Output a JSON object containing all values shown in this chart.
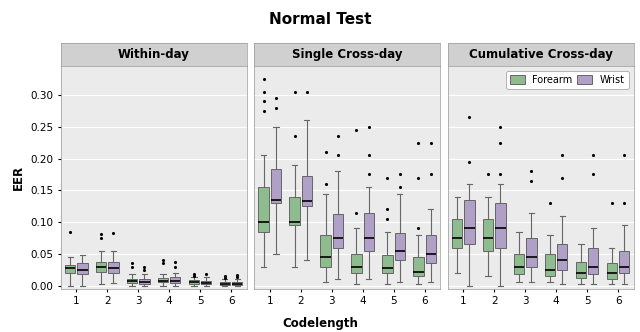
{
  "title": "Normal Test",
  "panels": [
    "Within-day",
    "Single Cross-day",
    "Cumulative Cross-day"
  ],
  "xlabel": "Codelength",
  "ylabel": "EER",
  "codelengths": [
    1,
    2,
    3,
    4,
    5,
    6
  ],
  "forearm_color": "#8fbc8f",
  "wrist_color": "#b0a0c8",
  "ylim": [
    -0.005,
    0.345
  ],
  "yticks": [
    0.0,
    0.05,
    0.1,
    0.15,
    0.2,
    0.25,
    0.3
  ],
  "within_forearm": [
    {
      "q1": 0.02,
      "median": 0.028,
      "q3": 0.033,
      "whislo": 0.0,
      "whishi": 0.045,
      "fliers": [
        0.085
      ]
    },
    {
      "q1": 0.022,
      "median": 0.029,
      "q3": 0.037,
      "whislo": 0.003,
      "whishi": 0.055,
      "fliers": [
        0.075,
        0.082
      ]
    },
    {
      "q1": 0.004,
      "median": 0.007,
      "q3": 0.01,
      "whislo": 0.0,
      "whishi": 0.018,
      "fliers": [
        0.03,
        0.035
      ]
    },
    {
      "q1": 0.005,
      "median": 0.008,
      "q3": 0.012,
      "whislo": 0.0,
      "whishi": 0.018,
      "fliers": [
        0.035,
        0.04
      ]
    },
    {
      "q1": 0.002,
      "median": 0.005,
      "q3": 0.009,
      "whislo": 0.0,
      "whishi": 0.013,
      "fliers": [
        0.015,
        0.018
      ]
    },
    {
      "q1": 0.001,
      "median": 0.003,
      "q3": 0.006,
      "whislo": 0.0,
      "whishi": 0.01,
      "fliers": [
        0.012,
        0.015
      ]
    }
  ],
  "within_wrist": [
    {
      "q1": 0.018,
      "median": 0.025,
      "q3": 0.035,
      "whislo": 0.0,
      "whishi": 0.048,
      "fliers": []
    },
    {
      "q1": 0.02,
      "median": 0.028,
      "q3": 0.038,
      "whislo": 0.004,
      "whishi": 0.055,
      "fliers": [
        0.083
      ]
    },
    {
      "q1": 0.003,
      "median": 0.006,
      "q3": 0.01,
      "whislo": 0.0,
      "whishi": 0.018,
      "fliers": [
        0.025,
        0.03
      ]
    },
    {
      "q1": 0.004,
      "median": 0.008,
      "q3": 0.013,
      "whislo": 0.0,
      "whishi": 0.02,
      "fliers": [
        0.03,
        0.038
      ]
    },
    {
      "q1": 0.002,
      "median": 0.004,
      "q3": 0.008,
      "whislo": 0.0,
      "whishi": 0.013,
      "fliers": [
        0.018
      ]
    },
    {
      "q1": 0.001,
      "median": 0.003,
      "q3": 0.006,
      "whislo": 0.0,
      "whishi": 0.01,
      "fliers": [
        0.013,
        0.016
      ]
    }
  ],
  "single_forearm": [
    {
      "q1": 0.085,
      "median": 0.1,
      "q3": 0.155,
      "whislo": 0.03,
      "whishi": 0.205,
      "fliers": [
        0.275,
        0.29,
        0.305,
        0.325
      ]
    },
    {
      "q1": 0.095,
      "median": 0.1,
      "q3": 0.14,
      "whislo": 0.03,
      "whishi": 0.19,
      "fliers": [
        0.235,
        0.305
      ]
    },
    {
      "q1": 0.03,
      "median": 0.045,
      "q3": 0.08,
      "whislo": 0.005,
      "whishi": 0.145,
      "fliers": [
        0.16,
        0.21
      ]
    },
    {
      "q1": 0.02,
      "median": 0.03,
      "q3": 0.05,
      "whislo": 0.003,
      "whishi": 0.09,
      "fliers": [
        0.115,
        0.245
      ]
    },
    {
      "q1": 0.02,
      "median": 0.028,
      "q3": 0.048,
      "whislo": 0.003,
      "whishi": 0.085,
      "fliers": [
        0.105,
        0.12,
        0.17
      ]
    },
    {
      "q1": 0.015,
      "median": 0.022,
      "q3": 0.045,
      "whislo": 0.003,
      "whishi": 0.08,
      "fliers": [
        0.09,
        0.17,
        0.225
      ]
    }
  ],
  "single_wrist": [
    {
      "q1": 0.13,
      "median": 0.135,
      "q3": 0.183,
      "whislo": 0.05,
      "whishi": 0.25,
      "fliers": [
        0.28,
        0.295
      ]
    },
    {
      "q1": 0.125,
      "median": 0.133,
      "q3": 0.173,
      "whislo": 0.04,
      "whishi": 0.26,
      "fliers": [
        0.305
      ]
    },
    {
      "q1": 0.06,
      "median": 0.075,
      "q3": 0.113,
      "whislo": 0.01,
      "whishi": 0.18,
      "fliers": [
        0.205,
        0.235
      ]
    },
    {
      "q1": 0.055,
      "median": 0.075,
      "q3": 0.115,
      "whislo": 0.01,
      "whishi": 0.155,
      "fliers": [
        0.175,
        0.205,
        0.25
      ]
    },
    {
      "q1": 0.04,
      "median": 0.055,
      "q3": 0.083,
      "whislo": 0.005,
      "whishi": 0.145,
      "fliers": [
        0.155,
        0.175
      ]
    },
    {
      "q1": 0.035,
      "median": 0.05,
      "q3": 0.08,
      "whislo": 0.005,
      "whishi": 0.12,
      "fliers": [
        0.175,
        0.225
      ]
    }
  ],
  "cumul_forearm": [
    {
      "q1": 0.06,
      "median": 0.075,
      "q3": 0.105,
      "whislo": 0.02,
      "whishi": 0.14,
      "fliers": []
    },
    {
      "q1": 0.055,
      "median": 0.075,
      "q3": 0.105,
      "whislo": 0.015,
      "whishi": 0.14,
      "fliers": [
        0.175
      ]
    },
    {
      "q1": 0.018,
      "median": 0.03,
      "q3": 0.05,
      "whislo": 0.005,
      "whishi": 0.085,
      "fliers": []
    },
    {
      "q1": 0.015,
      "median": 0.025,
      "q3": 0.05,
      "whislo": 0.005,
      "whishi": 0.08,
      "fliers": [
        0.13
      ]
    },
    {
      "q1": 0.012,
      "median": 0.02,
      "q3": 0.038,
      "whislo": 0.003,
      "whishi": 0.065,
      "fliers": []
    },
    {
      "q1": 0.01,
      "median": 0.02,
      "q3": 0.035,
      "whislo": 0.003,
      "whishi": 0.06,
      "fliers": [
        0.13
      ]
    }
  ],
  "cumul_wrist": [
    {
      "q1": 0.065,
      "median": 0.09,
      "q3": 0.135,
      "whislo": 0.0,
      "whishi": 0.16,
      "fliers": [
        0.195,
        0.265
      ]
    },
    {
      "q1": 0.06,
      "median": 0.09,
      "q3": 0.13,
      "whislo": 0.0,
      "whishi": 0.16,
      "fliers": [
        0.175,
        0.225,
        0.25
      ]
    },
    {
      "q1": 0.03,
      "median": 0.045,
      "q3": 0.075,
      "whislo": 0.005,
      "whishi": 0.115,
      "fliers": [
        0.165,
        0.18
      ]
    },
    {
      "q1": 0.025,
      "median": 0.04,
      "q3": 0.065,
      "whislo": 0.003,
      "whishi": 0.11,
      "fliers": [
        0.17,
        0.205
      ]
    },
    {
      "q1": 0.018,
      "median": 0.03,
      "q3": 0.06,
      "whislo": 0.003,
      "whishi": 0.09,
      "fliers": [
        0.175,
        0.205
      ]
    },
    {
      "q1": 0.02,
      "median": 0.03,
      "q3": 0.055,
      "whislo": 0.003,
      "whishi": 0.095,
      "fliers": [
        0.13,
        0.205
      ]
    }
  ],
  "panel_bg": "#ebebeb",
  "header_bg": "#d0d0d0",
  "grid_color": "#ffffff",
  "legend_forearm": "Forearm",
  "legend_wrist": "Wrist"
}
